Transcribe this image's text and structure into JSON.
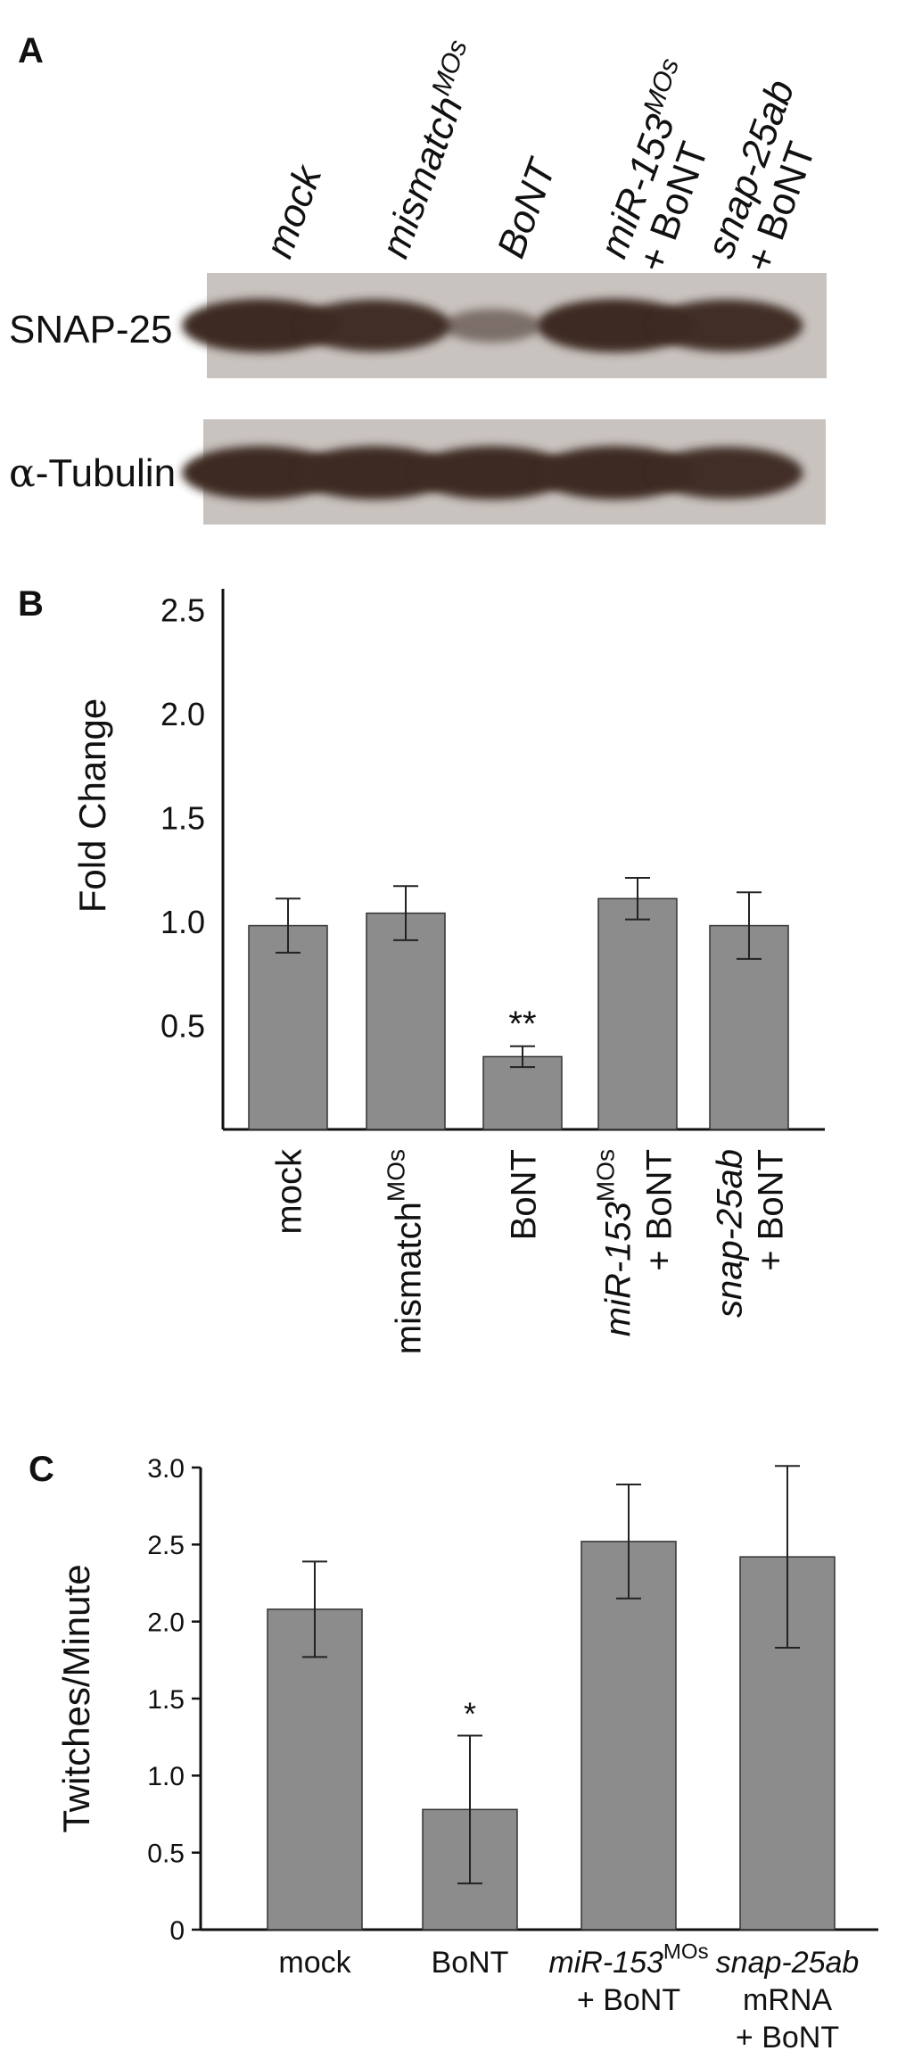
{
  "panels": {
    "a": "A",
    "b": "B",
    "c": "C"
  },
  "blot": {
    "lanes": [
      {
        "id": "mock",
        "lines": [
          {
            "t": "mock",
            "i": true
          }
        ]
      },
      {
        "id": "mismatch",
        "lines": [
          {
            "t": "mismatch",
            "i": true,
            "sup": "MOs"
          }
        ]
      },
      {
        "id": "bont",
        "lines": [
          {
            "t": "BoNT",
            "i": true
          }
        ]
      },
      {
        "id": "mir153",
        "lines": [
          {
            "t": "miR-153",
            "i": true,
            "sup": "MOs"
          },
          {
            "t": "+ BoNT",
            "i": false
          }
        ]
      },
      {
        "id": "snap25ab",
        "lines": [
          {
            "t": "snap-25ab",
            "i": true
          },
          {
            "t": "+ BoNT",
            "i": false
          }
        ]
      }
    ],
    "rows": [
      {
        "label": "SNAP-25",
        "intensity": [
          1.0,
          0.95,
          0.3,
          1.0,
          0.95
        ]
      },
      {
        "label_prefix": "α",
        "label": "-Tubulin",
        "intensity": [
          1.0,
          1.0,
          1.0,
          1.0,
          0.95
        ]
      }
    ]
  },
  "chart_data": [
    {
      "type": "bar",
      "panel": "B",
      "ylabel": "Fold Change",
      "ylim": [
        0,
        2.6
      ],
      "yticks": [
        0.5,
        1.0,
        1.5,
        2.0,
        2.5
      ],
      "ytick_labels": [
        "0.5",
        "1.0",
        "1.5",
        "2.0",
        "2.5"
      ],
      "categories": [
        {
          "lines": [
            {
              "t": "mock"
            }
          ]
        },
        {
          "lines": [
            {
              "t": "mismatch",
              "sup": "MOs"
            }
          ]
        },
        {
          "lines": [
            {
              "t": "BoNT"
            }
          ]
        },
        {
          "lines": [
            {
              "t": "miR-153",
              "i": true,
              "sup": "MOs"
            },
            {
              "t": "+ BoNT"
            }
          ]
        },
        {
          "lines": [
            {
              "t": "snap-25ab",
              "i": true
            },
            {
              "t": "+ BoNT"
            }
          ]
        }
      ],
      "values": [
        0.98,
        1.04,
        0.35,
        1.11,
        0.98
      ],
      "errors": [
        0.13,
        0.13,
        0.05,
        0.1,
        0.16
      ],
      "annotations": [
        "",
        "",
        "**",
        "",
        ""
      ]
    },
    {
      "type": "bar",
      "panel": "C",
      "ylabel": "Twitches/Minute",
      "ylim": [
        0,
        3.0
      ],
      "yticks": [
        0,
        0.5,
        1.0,
        1.5,
        2.0,
        2.5,
        3.0
      ],
      "ytick_labels": [
        "0",
        "0.5",
        "1.0",
        "1.5",
        "2.0",
        "2.5",
        "3.0"
      ],
      "categories": [
        {
          "lines": [
            {
              "t": "mock"
            }
          ]
        },
        {
          "lines": [
            {
              "t": "BoNT"
            }
          ]
        },
        {
          "lines": [
            {
              "t": "miR-153",
              "i": true,
              "sup": "MOs"
            },
            {
              "t": "+ BoNT"
            }
          ]
        },
        {
          "lines": [
            {
              "t": "snap-25ab",
              "i": true
            },
            {
              "t": "mRNA"
            },
            {
              "t": "+ BoNT"
            }
          ]
        }
      ],
      "values": [
        2.08,
        0.78,
        2.52,
        2.42
      ],
      "errors": [
        0.31,
        0.48,
        0.37,
        0.59
      ],
      "annotations": [
        "",
        "*",
        "",
        ""
      ]
    }
  ],
  "colors": {
    "bar": "#8c8c8c",
    "bar_stroke": "#333333",
    "axis": "#111111",
    "blot_bg": "#c9c3c0",
    "band": "#3e2a23"
  }
}
